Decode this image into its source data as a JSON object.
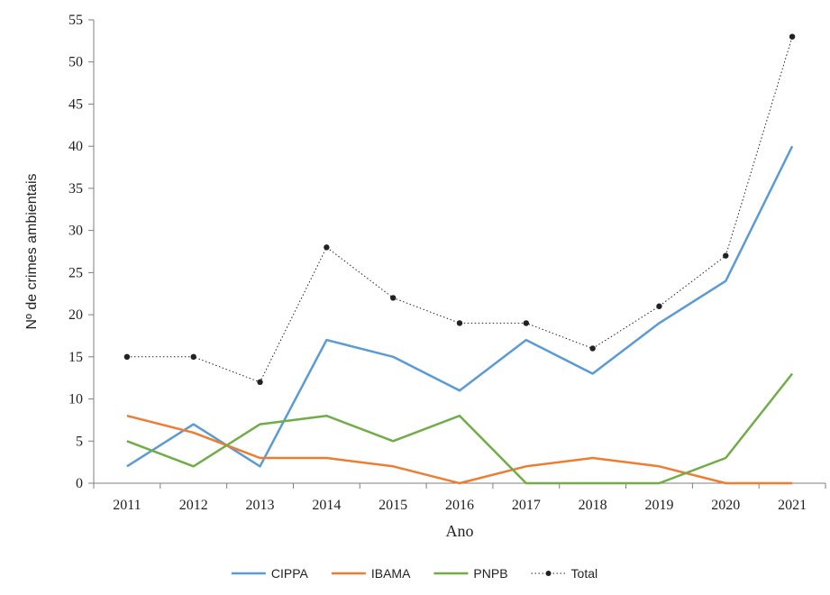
{
  "chart_data": {
    "type": "line",
    "xlabel": "Ano",
    "ylabel": "Nº de crimes ambientais",
    "categories": [
      "2011",
      "2012",
      "2013",
      "2014",
      "2015",
      "2016",
      "2017",
      "2018",
      "2019",
      "2020",
      "2021"
    ],
    "ylim": [
      0,
      55
    ],
    "yticks": [
      0,
      5,
      10,
      15,
      20,
      25,
      30,
      35,
      40,
      45,
      50,
      55
    ],
    "grid": false,
    "legend_position": "bottom",
    "series": [
      {
        "name": "CIPPA",
        "color": "#5b9bd5",
        "style": "solid",
        "marker": "none",
        "values": [
          2,
          7,
          2,
          17,
          15,
          11,
          17,
          13,
          19,
          24,
          40
        ]
      },
      {
        "name": "IBAMA",
        "color": "#ed7d31",
        "style": "solid",
        "marker": "none",
        "values": [
          8,
          6,
          3,
          3,
          2,
          0,
          2,
          3,
          2,
          0,
          0
        ]
      },
      {
        "name": "PNPB",
        "color": "#70ad47",
        "style": "solid",
        "marker": "none",
        "values": [
          5,
          2,
          7,
          8,
          5,
          8,
          0,
          0,
          0,
          3,
          13
        ]
      },
      {
        "name": "Total",
        "color": "#222222",
        "style": "dotted",
        "marker": "dot",
        "values": [
          15,
          15,
          12,
          28,
          22,
          19,
          19,
          16,
          21,
          27,
          53
        ]
      }
    ]
  }
}
